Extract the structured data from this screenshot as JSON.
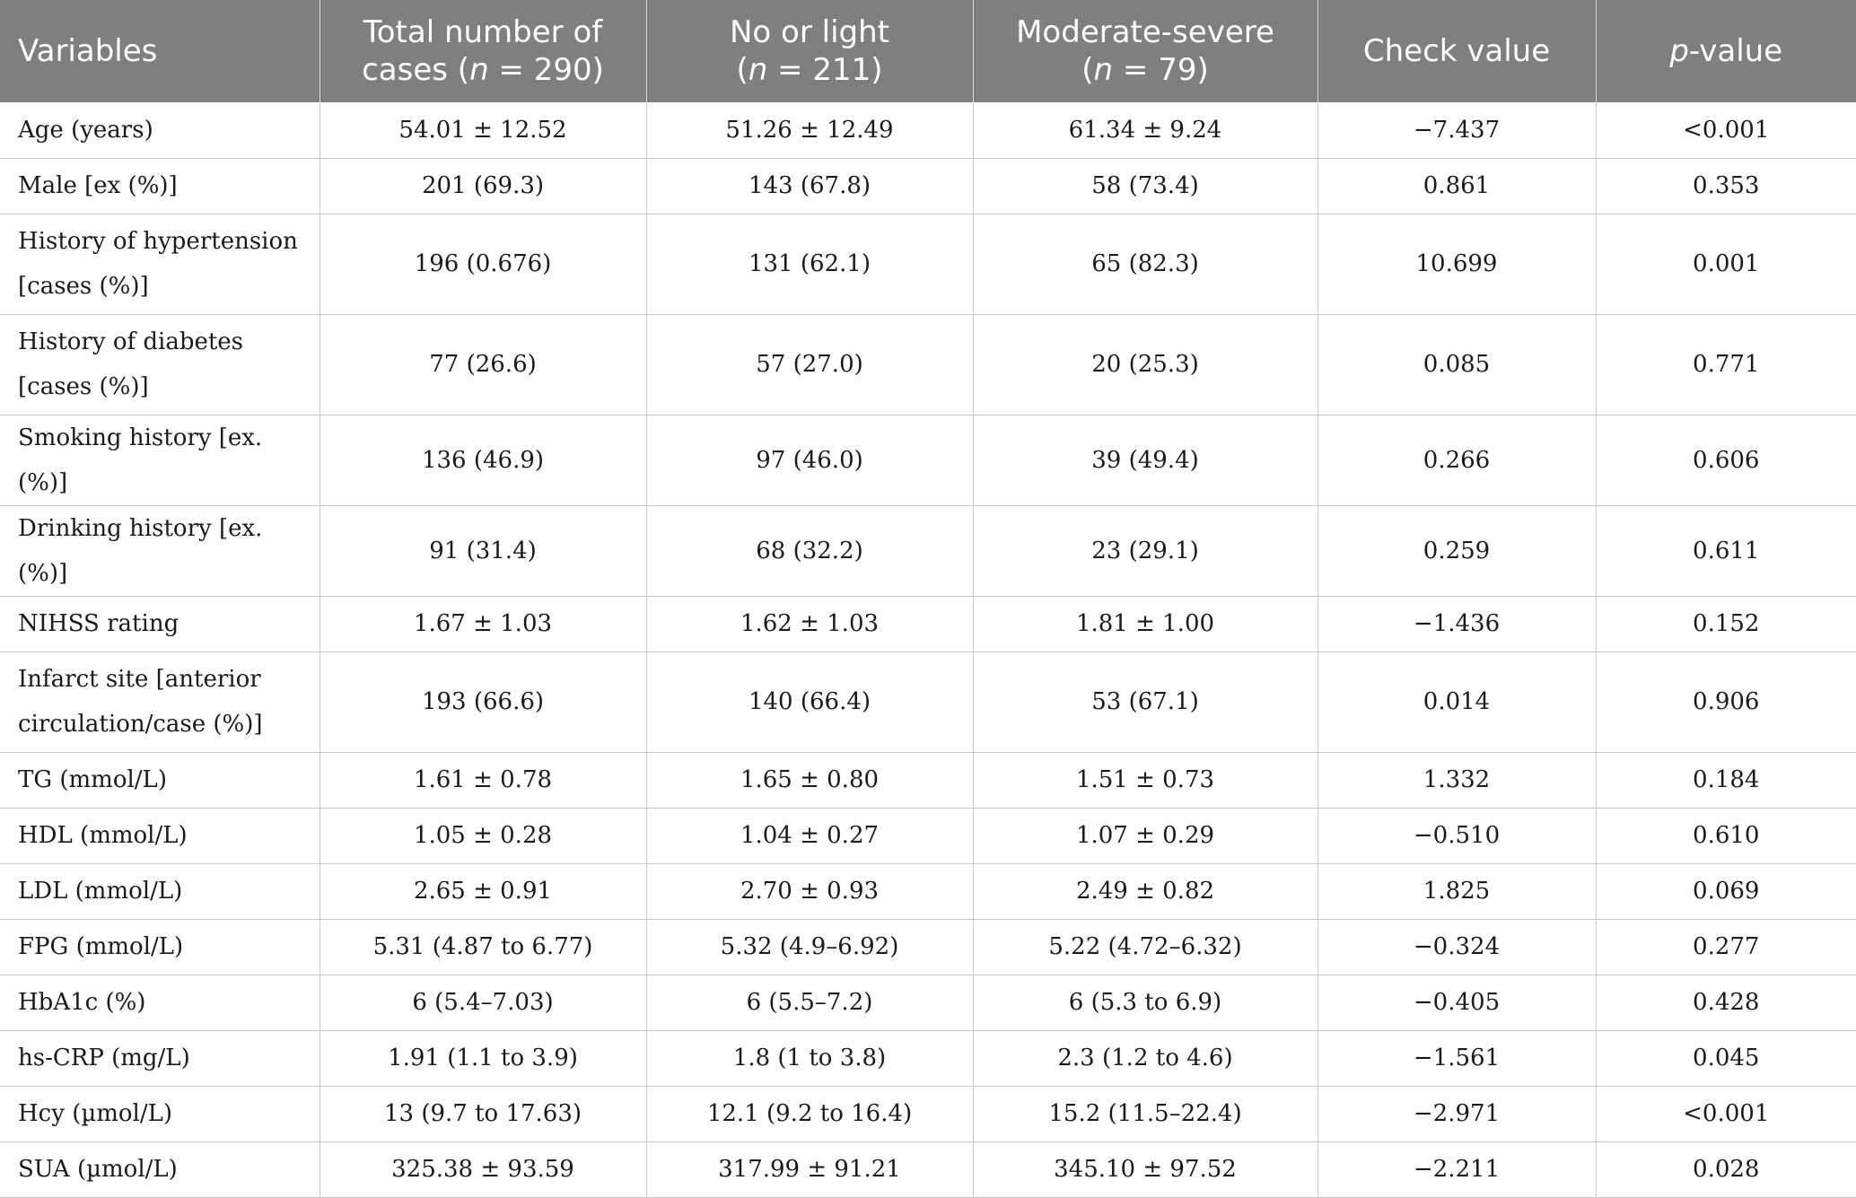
{
  "header": {
    "col0": "Variables",
    "col1_line1": "Total number of",
    "col1_line2_pre": "cases (",
    "col1_italic": "n",
    "col1_line2_post": " = 290)",
    "col2_line1": "No or light",
    "col2_pre": "(",
    "col2_italic": "n",
    "col2_post": " = 211)",
    "col3_line1": "Moderate-severe",
    "col3_pre": "(",
    "col3_italic": "n",
    "col3_post": " = 79)",
    "col4": "Check value",
    "col5_italic": "p",
    "col5_post": "-value"
  },
  "rows": [
    {
      "variable": "Age (years)",
      "total": "54.01 ± 12.52",
      "light": "51.26 ± 12.49",
      "severe": "61.34 ± 9.24",
      "check": "−7.437",
      "p": "<0.001"
    },
    {
      "variable": "Male [ex (%)]",
      "total": "201 (69.3)",
      "light": "143 (67.8)",
      "severe": "58 (73.4)",
      "check": "0.861",
      "p": "0.353"
    },
    {
      "variable": "History of hypertension [cases (%)]",
      "total": "196 (0.676)",
      "light": "131 (62.1)",
      "severe": "65 (82.3)",
      "check": "10.699",
      "p": "0.001"
    },
    {
      "variable": "History of diabetes [cases (%)]",
      "total": "77 (26.6)",
      "light": "57 (27.0)",
      "severe": "20 (25.3)",
      "check": "0.085",
      "p": "0.771"
    },
    {
      "variable": "Smoking history [ex. (%)]",
      "total": "136 (46.9)",
      "light": "97 (46.0)",
      "severe": "39 (49.4)",
      "check": "0.266",
      "p": "0.606"
    },
    {
      "variable": "Drinking history [ex. (%)]",
      "total": "91 (31.4)",
      "light": "68 (32.2)",
      "severe": "23 (29.1)",
      "check": "0.259",
      "p": "0.611"
    },
    {
      "variable": "NIHSS rating",
      "total": "1.67 ± 1.03",
      "light": "1.62 ± 1.03",
      "severe": "1.81 ± 1.00",
      "check": "−1.436",
      "p": "0.152"
    },
    {
      "variable": "Infarct site [anterior circulation/case (%)]",
      "total": "193 (66.6)",
      "light": "140 (66.4)",
      "severe": "53 (67.1)",
      "check": "0.014",
      "p": "0.906"
    },
    {
      "variable": "TG (mmol/L)",
      "total": "1.61 ± 0.78",
      "light": "1.65 ± 0.80",
      "severe": "1.51 ± 0.73",
      "check": "1.332",
      "p": "0.184"
    },
    {
      "variable": "HDL (mmol/L)",
      "total": "1.05 ± 0.28",
      "light": "1.04 ± 0.27",
      "severe": "1.07 ± 0.29",
      "check": "−0.510",
      "p": "0.610"
    },
    {
      "variable": "LDL (mmol/L)",
      "total": "2.65 ± 0.91",
      "light": "2.70 ± 0.93",
      "severe": "2.49 ± 0.82",
      "check": "1.825",
      "p": "0.069"
    },
    {
      "variable": "FPG (mmol/L)",
      "total": "5.31 (4.87 to 6.77)",
      "light": "5.32 (4.9–6.92)",
      "severe": "5.22 (4.72–6.32)",
      "check": "−0.324",
      "p": "0.277"
    },
    {
      "variable": "HbA1c (%)",
      "total": "6 (5.4–7.03)",
      "light": "6 (5.5–7.2)",
      "severe": "6 (5.3 to 6.9)",
      "check": "−0.405",
      "p": "0.428"
    },
    {
      "variable": "hs-CRP (mg/L)",
      "total": "1.91 (1.1 to 3.9)",
      "light": "1.8 (1 to 3.8)",
      "severe": "2.3 (1.2 to 4.6)",
      "check": "−1.561",
      "p": "0.045"
    },
    {
      "variable": "Hcy (µmol/L)",
      "total": "13 (9.7 to 17.63)",
      "light": "12.1 (9.2 to 16.4)",
      "severe": "15.2 (11.5–22.4)",
      "check": "−2.971",
      "p": "<0.001"
    },
    {
      "variable": "SUA (µmol/L)",
      "total": "325.38 ± 93.59",
      "light": "317.99 ± 91.21",
      "severe": "345.10 ± 97.52",
      "check": "−2.211",
      "p": "0.028"
    }
  ]
}
